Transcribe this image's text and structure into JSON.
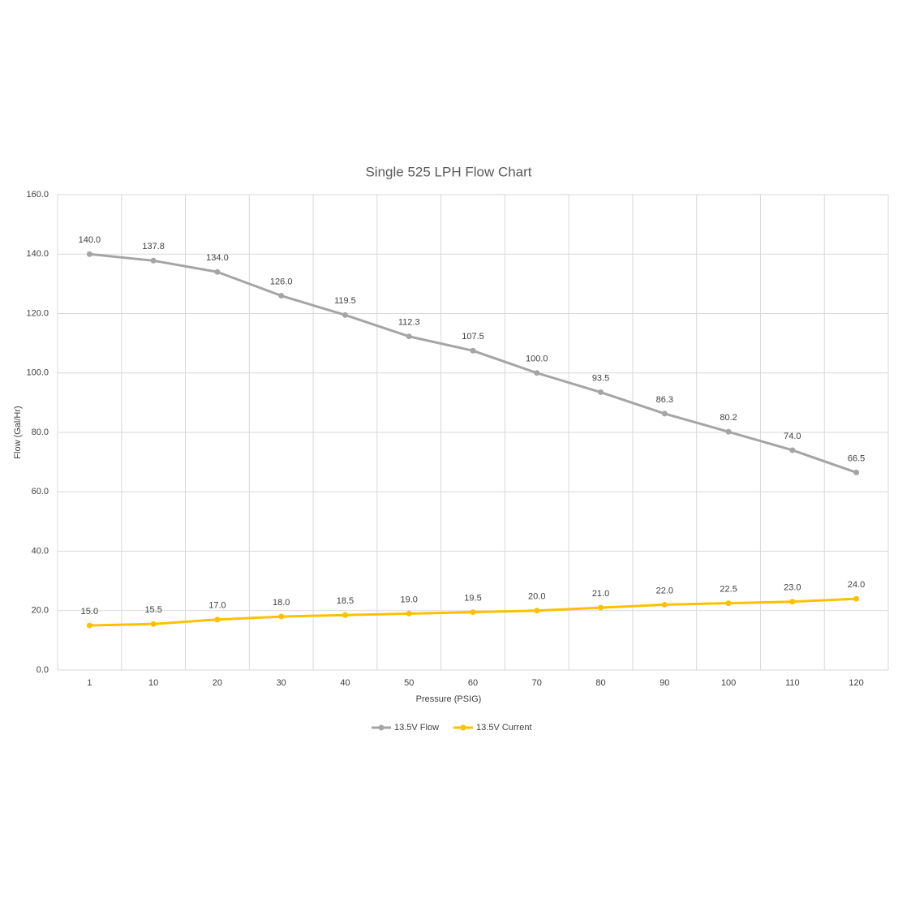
{
  "chart_data": {
    "type": "line",
    "title": "Single 525 LPH Flow Chart",
    "x_label": "Pressure (PSIG)",
    "y_label": "Flow (Gal/Hr)",
    "categories": [
      "1",
      "10",
      "20",
      "30",
      "40",
      "50",
      "60",
      "70",
      "80",
      "90",
      "100",
      "110",
      "120"
    ],
    "series": [
      {
        "name": "13.5V Flow",
        "color": "#a5a5a5",
        "values": [
          140,
          137.8,
          134,
          126,
          119.5,
          112.3,
          107.5,
          100,
          93.5,
          86.3,
          80.2,
          74,
          66.5
        ],
        "value_labels": [
          "140.0",
          "137.8",
          "134.0",
          "126.0",
          "119.5",
          "112.3",
          "107.5",
          "100.0",
          "93.5",
          "86.3",
          "80.2",
          "74.0",
          "66.5"
        ]
      },
      {
        "name": "13.5V Current",
        "color": "#ffc000",
        "values": [
          15,
          15.5,
          17,
          18,
          18.5,
          19,
          19.5,
          20,
          21,
          22,
          22.5,
          23,
          24
        ],
        "value_labels": [
          "15.0",
          "15.5",
          "17.0",
          "18.0",
          "18.5",
          "19.0",
          "19.5",
          "20.0",
          "21.0",
          "22.0",
          "22.5",
          "23.0",
          "24.0"
        ]
      }
    ],
    "ylim": [
      0,
      160
    ],
    "yticks": [
      {
        "value": 0,
        "label": "0.0"
      },
      {
        "value": 20,
        "label": "20.0"
      },
      {
        "value": 40,
        "label": "40.0"
      },
      {
        "value": 60,
        "label": "60.0"
      },
      {
        "value": 80,
        "label": "80.0"
      },
      {
        "value": 100,
        "label": "100.0"
      },
      {
        "value": 120,
        "label": "120.0"
      },
      {
        "value": 140,
        "label": "140.0"
      },
      {
        "value": 160,
        "label": "160.0"
      }
    ],
    "grid": true,
    "legend": "bottom"
  }
}
